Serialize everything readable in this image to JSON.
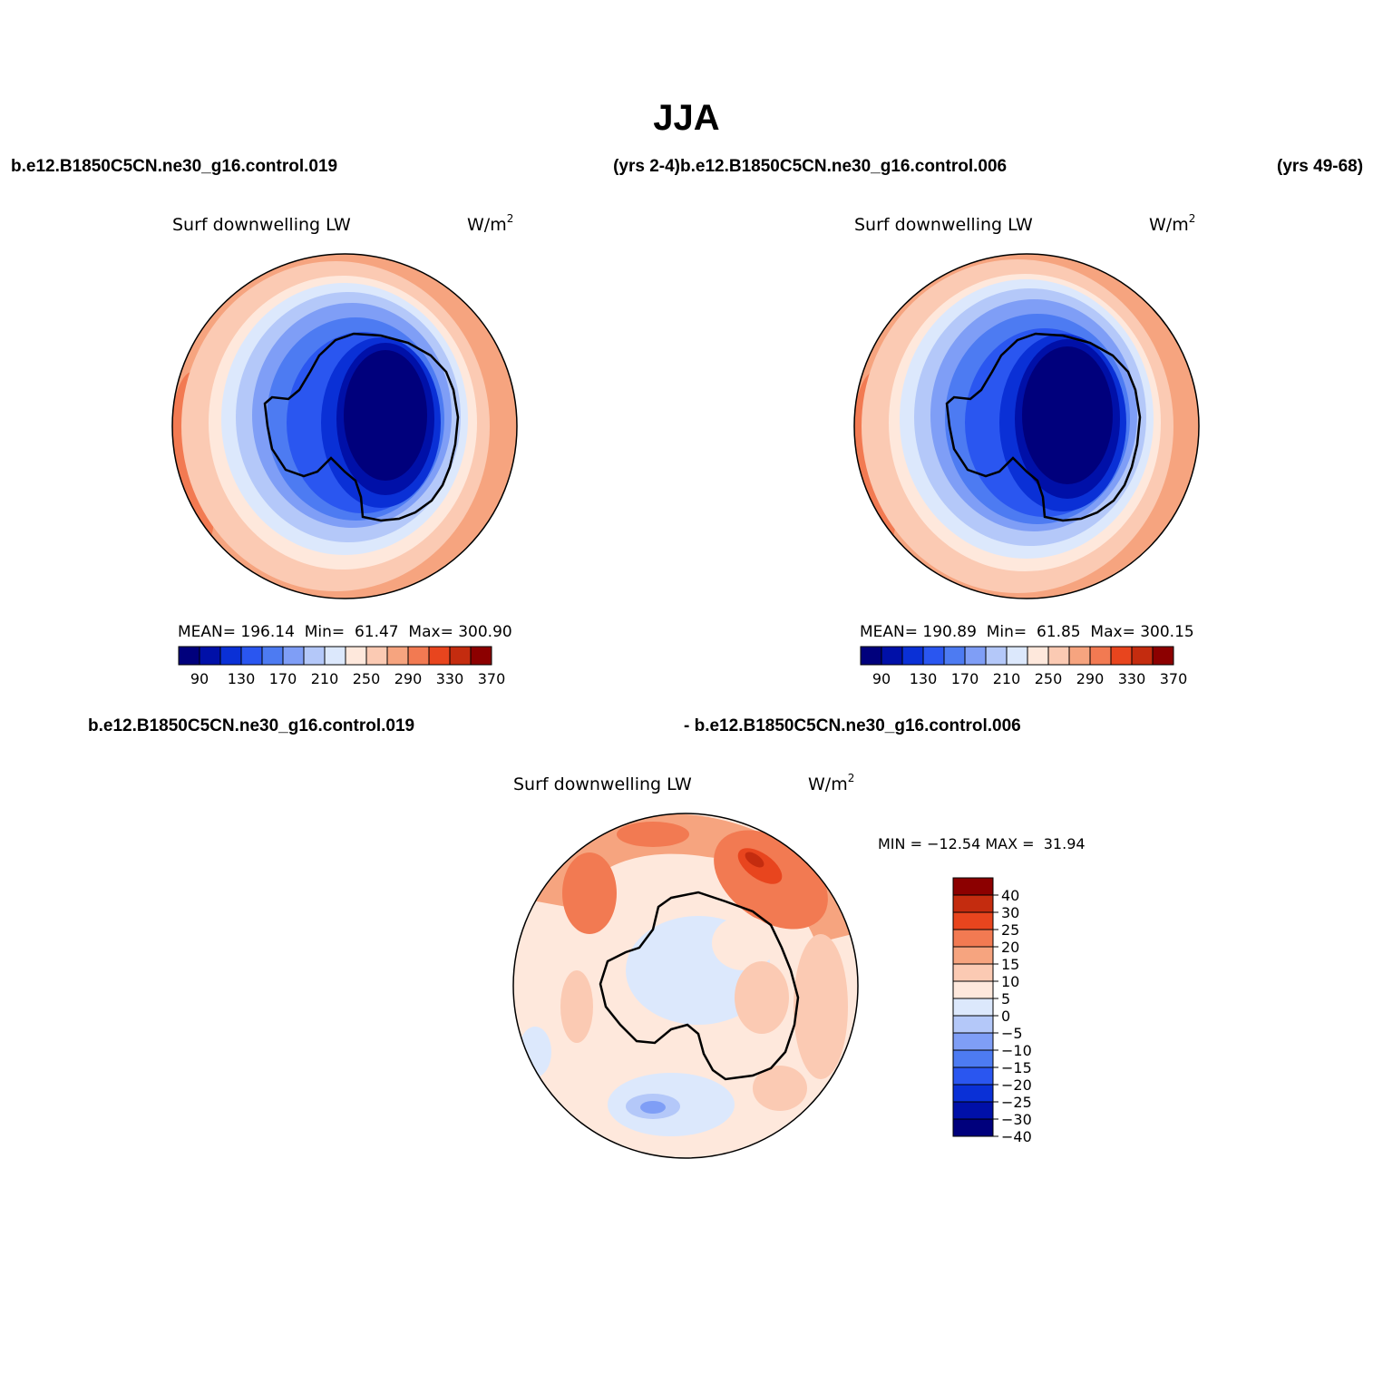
{
  "title": "JJA",
  "case_a": "b.e12.B1850C5CN.ne30_g16.control.019",
  "case_a_years": "(yrs 2-4)",
  "case_b": "b.e12.B1850C5CN.ne30_g16.control.006",
  "case_b_years": "(yrs 49-68)",
  "diff_header_left": "b.e12.B1850C5CN.ne30_g16.control.019",
  "diff_header_right": "- b.e12.B1850C5CN.ne30_g16.control.006",
  "colors": {
    "abs_palette": [
      "#00007c",
      "#0010a8",
      "#0a30d6",
      "#2a56f0",
      "#4d7bf2",
      "#7f9ef6",
      "#b4c8f9",
      "#dce8fc",
      "#fee8dc",
      "#fbcab3",
      "#f6a47f",
      "#f27a52",
      "#e8451e",
      "#c42c0f",
      "#8c0000"
    ],
    "diff_palette": [
      "#00007c",
      "#0010a8",
      "#0a30d6",
      "#2a56f0",
      "#4d7bf2",
      "#7f9ef6",
      "#b4c8f9",
      "#dce8fc",
      "#fee8dc",
      "#fbcab3",
      "#f6a47f",
      "#f27a52",
      "#e8451e",
      "#c42c0f",
      "#8c0000"
    ]
  },
  "panels": [
    {
      "variable": "Surf downwelling LW",
      "units": "W/m",
      "units_exp": "2",
      "mean_label": "MEAN=",
      "mean": "196.14",
      "min_label": "Min=",
      "min": "61.47",
      "max_label": "Max=",
      "max": "300.90",
      "colorbar_ticks": [
        "90",
        "130",
        "170",
        "210",
        "250",
        "290",
        "330",
        "370"
      ]
    },
    {
      "variable": "Surf downwelling LW",
      "units": "W/m",
      "units_exp": "2",
      "mean_label": "MEAN=",
      "mean": "190.89",
      "min_label": "Min=",
      "min": "61.85",
      "max_label": "Max=",
      "max": "300.15",
      "colorbar_ticks": [
        "90",
        "130",
        "170",
        "210",
        "250",
        "290",
        "330",
        "370"
      ]
    },
    {
      "variable": "Surf downwelling LW",
      "units": "W/m",
      "units_exp": "2",
      "minmax_text": "MIN = −12.54 MAX =  31.94",
      "colorbar_ticks": [
        "40",
        "30",
        "25",
        "20",
        "15",
        "10",
        "5",
        "0",
        "−5",
        "−10",
        "−15",
        "−20",
        "−25",
        "−30",
        "−40"
      ]
    }
  ]
}
